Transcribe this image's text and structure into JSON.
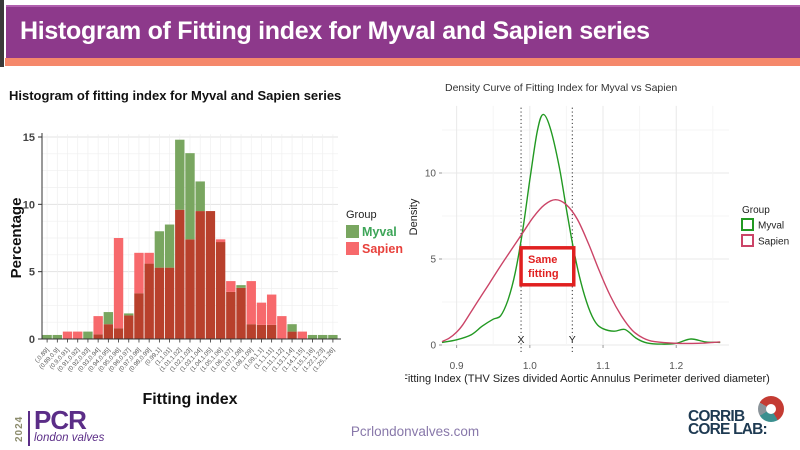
{
  "slide": {
    "title": "Histogram of Fitting index for Myval and Sapien series",
    "footer": {
      "year": "2024",
      "pcr_name": "PCR",
      "pcr_sub": "london valves",
      "website": "Pcrlondonvalves.com",
      "corrib_line1": "CORRIB",
      "corrib_line2": "CORE LAB:"
    },
    "colors": {
      "header_bg": "#8d398b",
      "accent": "#f5886b",
      "pcr_purple": "#5b2d87",
      "corrib_navy": "#1e3a52"
    }
  },
  "chart_data": [
    {
      "type": "bar",
      "title": "Histogram of fitting index for Myval and Sapien series",
      "xlabel": "Fitting index",
      "ylabel": "Percentage",
      "ylim": [
        0,
        15
      ],
      "yticks": [
        0,
        5,
        10,
        15
      ],
      "legend_title": "Group",
      "legend_position": "right",
      "grid": true,
      "categories": [
        "(,0.89]",
        "(0.89,0.9]",
        "(0.9,0.91]",
        "(0.91,0.92]",
        "(0.92,0.93]",
        "(0.93,0.94]",
        "(0.94,0.95]",
        "(0.95,0.96]",
        "(0.96,0.97]",
        "(0.97,0.98]",
        "(0.98,0.99]",
        "(0.99,1]",
        "(1,1.01]",
        "(1.01,1.02]",
        "(1.02,1.03]",
        "(1.03,1.04]",
        "(1.04,1.05]",
        "(1.05,1.06]",
        "(1.06,1.07]",
        "(1.07,1.08]",
        "(1.08,1.09]",
        "(1.09,1.1]",
        "(1.1,1.11]",
        "(1.11,1.12]",
        "(1.13,1.14]",
        "(1.14,1.15]",
        "(1.15,1.16]",
        "(1.22,1.23]",
        "(1.25,1.26]"
      ],
      "series": [
        {
          "name": "Myval",
          "color": "#79a660",
          "label_color": "#3da558",
          "values": [
            0.3,
            0.3,
            0,
            0,
            0.55,
            0.35,
            2.0,
            0.8,
            1.9,
            3.4,
            5.6,
            8.0,
            8.5,
            14.8,
            13.8,
            11.7,
            9.5,
            7.2,
            3.5,
            4.0,
            1.1,
            1.05,
            1.05,
            0,
            1.1,
            0,
            0.3,
            0.3,
            0.3
          ]
        },
        {
          "name": "Sapien",
          "color": "#f7696c",
          "label_color": "#e8413c",
          "values": [
            0,
            0,
            0.55,
            0.55,
            0,
            1.7,
            1.1,
            7.5,
            1.75,
            6.4,
            6.4,
            5.3,
            5.3,
            9.6,
            7.4,
            9.5,
            9.5,
            7.4,
            4.3,
            3.8,
            4.3,
            2.7,
            3.3,
            1.7,
            0.55,
            0.55,
            0,
            0,
            0
          ]
        }
      ],
      "overlap_color": "#b8402c"
    },
    {
      "type": "line",
      "title": "Density Curve of Fitting Index for Myval vs Sapien",
      "xlabel": "Fitting Index (THV Sizes divided Aortic Annulus Perimeter derived diameter)",
      "ylabel": "Density",
      "xlim": [
        0.88,
        1.272
      ],
      "ylim": [
        0,
        14
      ],
      "xticks": [
        0.9,
        1.0,
        1.1,
        1.2
      ],
      "yticks": [
        0,
        5,
        10
      ],
      "legend_title": "Group",
      "legend_position": "right",
      "grid": true,
      "series": [
        {
          "name": "Myval",
          "color": "#229922",
          "points": [
            [
              0.88,
              0.15
            ],
            [
              0.9,
              0.3
            ],
            [
              0.92,
              0.6
            ],
            [
              0.935,
              1.1
            ],
            [
              0.95,
              1.5
            ],
            [
              0.96,
              1.7
            ],
            [
              0.97,
              2.6
            ],
            [
              0.98,
              4.2
            ],
            [
              0.99,
              6.6
            ],
            [
              1.0,
              9.6
            ],
            [
              1.01,
              12.4
            ],
            [
              1.018,
              13.4
            ],
            [
              1.028,
              12.6
            ],
            [
              1.04,
              10.4
            ],
            [
              1.05,
              7.9
            ],
            [
              1.06,
              5.5
            ],
            [
              1.07,
              3.6
            ],
            [
              1.08,
              2.2
            ],
            [
              1.09,
              1.3
            ],
            [
              1.1,
              0.95
            ],
            [
              1.115,
              0.8
            ],
            [
              1.13,
              0.9
            ],
            [
              1.145,
              0.4
            ],
            [
              1.16,
              0.12
            ],
            [
              1.18,
              0.05
            ],
            [
              1.2,
              0.1
            ],
            [
              1.22,
              0.35
            ],
            [
              1.24,
              0.18
            ],
            [
              1.26,
              0.15
            ]
          ]
        },
        {
          "name": "Sapien",
          "color": "#cb4467",
          "points": [
            [
              0.88,
              0.2
            ],
            [
              0.89,
              0.4
            ],
            [
              0.9,
              0.75
            ],
            [
              0.908,
              1.15
            ],
            [
              0.92,
              1.95
            ],
            [
              0.932,
              2.75
            ],
            [
              0.945,
              3.6
            ],
            [
              0.96,
              4.6
            ],
            [
              0.975,
              5.55
            ],
            [
              0.99,
              6.5
            ],
            [
              1.005,
              7.45
            ],
            [
              1.02,
              8.15
            ],
            [
              1.035,
              8.45
            ],
            [
              1.05,
              8.15
            ],
            [
              1.065,
              7.3
            ],
            [
              1.08,
              5.9
            ],
            [
              1.095,
              4.3
            ],
            [
              1.11,
              2.85
            ],
            [
              1.125,
              1.7
            ],
            [
              1.14,
              0.85
            ],
            [
              1.155,
              0.4
            ],
            [
              1.17,
              0.2
            ],
            [
              1.2,
              0.1
            ],
            [
              1.23,
              0.1
            ],
            [
              1.26,
              0.18
            ]
          ]
        }
      ],
      "annotations": {
        "vlines": [
          {
            "x": 0.988,
            "label": "X"
          },
          {
            "x": 1.058,
            "label": "Y"
          }
        ],
        "box": {
          "x0": 0.988,
          "x1": 1.06,
          "y0": 3.5,
          "y1": 5.65,
          "label_line1": "Same",
          "label_line2": "fitting",
          "color": "#e02020"
        }
      }
    }
  ]
}
